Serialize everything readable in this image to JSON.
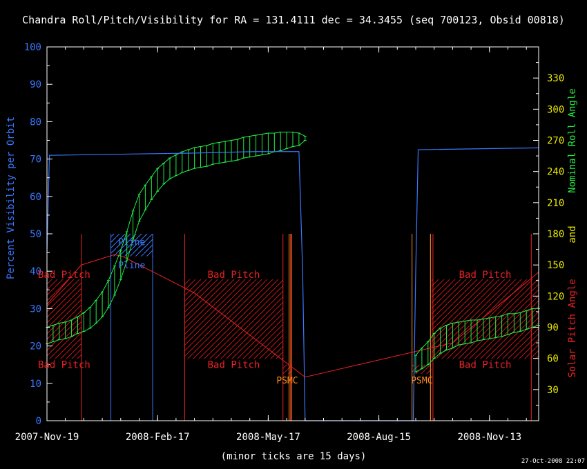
{
  "chart_data": {
    "type": "line",
    "title": "Chandra Roll/Pitch/Visibility for RA = 131.4111 dec = 34.3455 (seq 700123, Obsid 00818)",
    "xlabel": "(minor ticks are 15 days)",
    "ylabel_left": "Percent Visibility per Orbit",
    "ylabel_right_green": "Nominal Roll Angle",
    "ylabel_right_and": "and",
    "ylabel_right_red": "Solar Pitch Angle",
    "timestamp": "27-Oct-2008 22:07",
    "x_range_days": [
      0,
      400
    ],
    "x_tick_labels": [
      {
        "day": 0,
        "label": "2007-Nov-19"
      },
      {
        "day": 90,
        "label": "2008-Feb-17"
      },
      {
        "day": 180,
        "label": "2008-May-17"
      },
      {
        "day": 270,
        "label": "2008-Aug-15"
      },
      {
        "day": 360,
        "label": "2008-Nov-13"
      }
    ],
    "ylim_left": [
      0,
      100
    ],
    "y_ticks_left": [
      0,
      10,
      20,
      30,
      40,
      50,
      60,
      70,
      80,
      90,
      100
    ],
    "ylim_right": [
      0,
      360
    ],
    "y_ticks_right": [
      30,
      60,
      90,
      120,
      150,
      180,
      210,
      240,
      270,
      300,
      330
    ],
    "colors": {
      "visibility": "#3a78ff",
      "roll": "#22ee44",
      "pitch": "#ee2222",
      "psmc": "#ff8c1a",
      "axis_left": "#3a78ff",
      "axis_right": "#e8e800",
      "frame": "#ffffff"
    },
    "visibility": {
      "name": "Percent Visibility per Orbit",
      "points": [
        [
          0,
          45
        ],
        [
          2,
          71
        ],
        [
          60,
          71.3
        ],
        [
          120,
          71.6
        ],
        [
          170,
          72
        ],
        [
          205,
          72
        ],
        [
          208,
          40
        ],
        [
          210,
          0
        ],
        [
          298,
          0
        ],
        [
          300,
          40
        ],
        [
          302,
          72.5
        ],
        [
          400,
          73
        ]
      ]
    },
    "roll": {
      "name": "Nominal Roll Angle",
      "days": [
        0,
        5,
        10,
        15,
        20,
        25,
        30,
        35,
        40,
        45,
        50,
        55,
        60,
        65,
        70,
        75,
        80,
        85,
        90,
        95,
        100,
        105,
        110,
        115,
        120,
        125,
        130,
        135,
        140,
        145,
        150,
        155,
        160,
        165,
        170,
        175,
        180,
        185,
        190,
        195,
        200,
        205,
        210,
        300,
        305,
        310,
        315,
        320,
        325,
        330,
        335,
        340,
        345,
        350,
        355,
        360,
        365,
        370,
        375,
        380,
        385,
        390,
        395,
        400
      ],
      "values": [
        82,
        84,
        86,
        87,
        89,
        92,
        95,
        99,
        105,
        112,
        122,
        135,
        150,
        168,
        188,
        205,
        215,
        224,
        232,
        238,
        243,
        246,
        249,
        251,
        253,
        254,
        255,
        257,
        258,
        259,
        260,
        261,
        263,
        264,
        265,
        266,
        267,
        268,
        269,
        270,
        271,
        271,
        272,
        55,
        60,
        65,
        72,
        77,
        80,
        82,
        84,
        85,
        86,
        87,
        88,
        89,
        90,
        91,
        93,
        94,
        95,
        97,
        99,
        100
      ],
      "halfwidth": [
        8,
        8,
        8,
        8,
        8,
        8,
        9,
        10,
        11,
        12,
        13,
        14,
        14,
        14,
        14,
        13,
        12,
        11,
        11,
        10,
        10,
        10,
        10,
        10,
        10,
        10,
        10,
        10,
        10,
        10,
        10,
        10,
        10,
        10,
        10,
        10,
        10,
        9,
        9,
        8,
        7,
        6,
        2,
        8,
        10,
        11,
        12,
        12,
        12,
        12,
        11,
        11,
        11,
        10,
        10,
        10,
        10,
        10,
        10,
        9,
        9,
        9,
        9,
        8
      ]
    },
    "pitch": {
      "name": "Solar Pitch Angle",
      "points": [
        [
          0,
          112
        ],
        [
          28,
          150
        ],
        [
          55,
          160
        ],
        [
          62,
          158
        ],
        [
          120,
          123
        ],
        [
          210,
          42
        ],
        [
          330,
          75
        ],
        [
          400,
          143
        ]
      ]
    },
    "bad_pitch_zones": [
      {
        "start": 0,
        "end": 28,
        "label": "Bad Pitch",
        "show_label_low": true
      },
      {
        "start": 112,
        "end": 192,
        "label": "Bad Pitch",
        "show_label_low": true
      },
      {
        "start": 313,
        "end": 400,
        "label": "Bad Pitch",
        "show_label_low": true
      }
    ],
    "bad_pitch_band": {
      "top_pct": 37.8,
      "low_pct": 16.5,
      "upper_edge_pct": 50
    },
    "psmc_zones": [
      {
        "start": 192,
        "end": 199,
        "label": "PSMC"
      },
      {
        "start": 297,
        "end": 313,
        "label": "PSMC"
      }
    ],
    "pline_zone": {
      "start": 52,
      "end": 86,
      "label_top": "Pline",
      "label_bottom": "Pline"
    },
    "blue_vlines": [
      52,
      86
    ],
    "red_vlines": [
      0,
      28,
      112,
      192,
      198,
      312,
      314,
      394
    ],
    "orange_vlines": [
      197,
      199,
      297,
      312
    ]
  }
}
